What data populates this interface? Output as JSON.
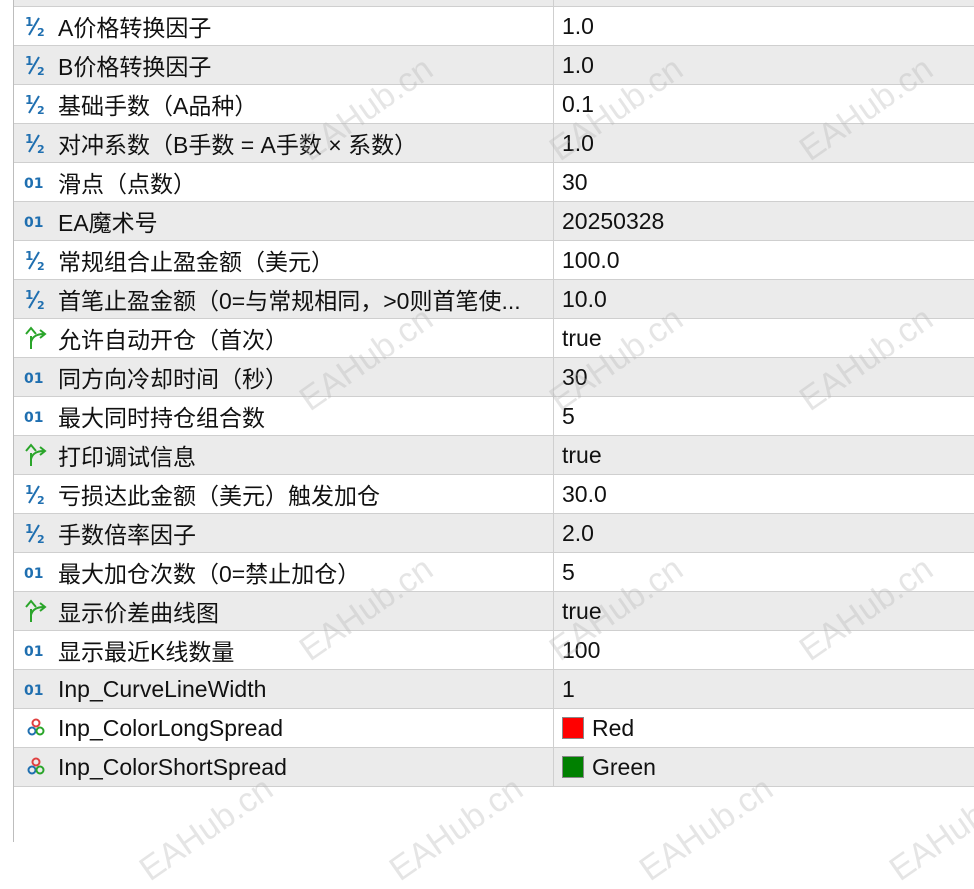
{
  "colors": {
    "alt_row": "#ebebeb",
    "int_icon": "#1f6fb0",
    "bool_icon": "#2aa52a"
  },
  "rows": [
    {
      "icon": "double-icon",
      "name": "",
      "value": ""
    },
    {
      "icon": "double-icon",
      "name": "A价格转换因子",
      "value": "1.0"
    },
    {
      "icon": "double-icon",
      "name": "B价格转换因子",
      "value": "1.0"
    },
    {
      "icon": "double-icon",
      "name": "基础手数（A品种）",
      "value": "0.1"
    },
    {
      "icon": "double-icon",
      "name": "对冲系数（B手数 = A手数 × 系数）",
      "value": "1.0"
    },
    {
      "icon": "integer-icon",
      "name": "滑点（点数）",
      "value": "30"
    },
    {
      "icon": "integer-icon",
      "name": "EA魔术号",
      "value": "20250328"
    },
    {
      "icon": "double-icon",
      "name": "常规组合止盈金额（美元）",
      "value": "100.0"
    },
    {
      "icon": "double-icon",
      "name": "首笔止盈金额（0=与常规相同，>0则首笔使...",
      "value": "10.0"
    },
    {
      "icon": "bool-icon",
      "name": "允许自动开仓（首次）",
      "value": "true"
    },
    {
      "icon": "integer-icon",
      "name": "同方向冷却时间（秒）",
      "value": "30"
    },
    {
      "icon": "integer-icon",
      "name": "最大同时持仓组合数",
      "value": "5"
    },
    {
      "icon": "bool-icon",
      "name": "打印调试信息",
      "value": "true"
    },
    {
      "icon": "double-icon",
      "name": "亏损达此金额（美元）触发加仓",
      "value": "30.0"
    },
    {
      "icon": "double-icon",
      "name": "手数倍率因子",
      "value": "2.0"
    },
    {
      "icon": "integer-icon",
      "name": "最大加仓次数（0=禁止加仓）",
      "value": "5"
    },
    {
      "icon": "bool-icon",
      "name": "显示价差曲线图",
      "value": "true"
    },
    {
      "icon": "integer-icon",
      "name": "显示最近K线数量",
      "value": "100"
    },
    {
      "icon": "integer-icon",
      "name": "Inp_CurveLineWidth",
      "value": "1"
    },
    {
      "icon": "color-icon",
      "name": "Inp_ColorLongSpread",
      "value": "Red",
      "swatch": "#ff0000"
    },
    {
      "icon": "color-icon",
      "name": "Inp_ColorShortSpread",
      "value": "Green",
      "swatch": "#008000"
    }
  ],
  "watermark": "EAHub.cn"
}
